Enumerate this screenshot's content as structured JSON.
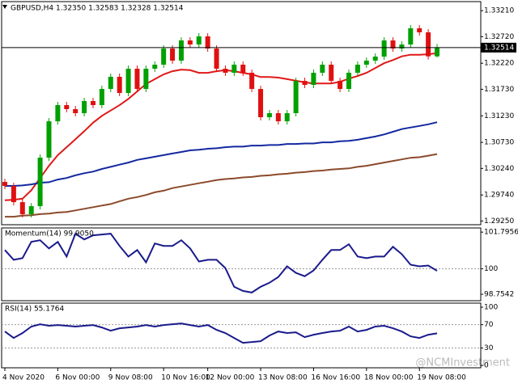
{
  "chart_data": [
    {
      "type": "candlestick",
      "title": "GBPUSD,H4  1.32350 1.32583 1.32328 1.32514",
      "watermark": "@NCMInvestment",
      "up_color": "#00a000",
      "down_color": "#e01010",
      "categories": [
        "4 Nov 2020",
        null,
        null,
        null,
        null,
        null,
        "6 Nov 00:00",
        null,
        null,
        null,
        null,
        null,
        "9 Nov 08:00",
        null,
        null,
        null,
        null,
        null,
        "10 Nov 16:00",
        null,
        null,
        null,
        null,
        "12 Nov 00:00",
        null,
        null,
        null,
        null,
        null,
        "13 Nov 08:00",
        null,
        null,
        null,
        null,
        null,
        "16 Nov 16:00",
        null,
        null,
        null,
        null,
        null,
        "18 Nov 00:00",
        null,
        null,
        null,
        null,
        null,
        "19 Nov 08:00",
        null,
        null
      ],
      "open": [
        1.29986,
        1.2991,
        1.29605,
        1.29377,
        1.29529,
        1.30443,
        1.31127,
        1.31432,
        1.31356,
        1.3128,
        1.31508,
        1.31432,
        1.31736,
        1.31965,
        1.3166,
        1.32117,
        1.31736,
        1.32117,
        1.32193,
        1.32497,
        1.32269,
        1.32649,
        1.32573,
        1.32726,
        1.32497,
        1.32117,
        1.32041,
        1.32193,
        1.32041,
        1.31736,
        1.31204,
        1.3128,
        1.31127,
        1.3128,
        1.31888,
        1.31812,
        1.32041,
        1.32193,
        1.31888,
        1.31736,
        1.32041,
        1.32193,
        1.32269,
        1.32345,
        1.32649,
        1.32497,
        1.32573,
        1.32878,
        1.32802,
        1.3235
      ],
      "high": [
        1.30046,
        1.2997,
        1.29665,
        1.29589,
        1.30503,
        1.31187,
        1.31492,
        1.31492,
        1.31416,
        1.31568,
        1.31568,
        1.31796,
        1.32025,
        1.32025,
        1.32177,
        1.32177,
        1.32177,
        1.32253,
        1.32557,
        1.32557,
        1.32709,
        1.32709,
        1.32786,
        1.32786,
        1.32557,
        1.32177,
        1.32253,
        1.32253,
        1.32101,
        1.31796,
        1.3134,
        1.3134,
        1.3134,
        1.31948,
        1.31948,
        1.32101,
        1.32253,
        1.32253,
        1.31948,
        1.32101,
        1.32253,
        1.32329,
        1.32405,
        1.32709,
        1.32709,
        1.32633,
        1.32938,
        1.32938,
        1.32862,
        1.32583
      ],
      "low": [
        1.2985,
        1.29545,
        1.29317,
        1.29317,
        1.29469,
        1.30383,
        1.31067,
        1.31296,
        1.3122,
        1.3122,
        1.31372,
        1.31372,
        1.31676,
        1.316,
        1.316,
        1.31676,
        1.31676,
        1.32057,
        1.32133,
        1.32209,
        1.32209,
        1.32513,
        1.32513,
        1.32437,
        1.32057,
        1.31981,
        1.31981,
        1.31981,
        1.31676,
        1.31144,
        1.31144,
        1.31067,
        1.31067,
        1.3122,
        1.31752,
        1.31752,
        1.31981,
        1.31828,
        1.31676,
        1.31676,
        1.31981,
        1.32133,
        1.32209,
        1.32285,
        1.32437,
        1.32437,
        1.32513,
        1.32742,
        1.3229,
        1.32328
      ],
      "close": [
        1.2991,
        1.29605,
        1.29377,
        1.29529,
        1.30443,
        1.31127,
        1.31432,
        1.31356,
        1.3128,
        1.31508,
        1.31432,
        1.31736,
        1.31965,
        1.3166,
        1.32117,
        1.31736,
        1.32117,
        1.32193,
        1.32497,
        1.32269,
        1.32649,
        1.32573,
        1.32726,
        1.32497,
        1.32117,
        1.32041,
        1.32193,
        1.32041,
        1.31736,
        1.31204,
        1.3128,
        1.31127,
        1.3128,
        1.31888,
        1.31812,
        1.32041,
        1.32193,
        1.31888,
        1.31736,
        1.32041,
        1.32193,
        1.32269,
        1.32345,
        1.32649,
        1.32497,
        1.32573,
        1.32878,
        1.32802,
        1.3235,
        1.32514
      ],
      "series": [
        {
          "color": "#e01818",
          "values": [
            1.2964,
            1.2965,
            1.2967,
            1.2983,
            1.3006,
            1.3029,
            1.3049,
            1.3064,
            1.3079,
            1.3094,
            1.311,
            1.3123,
            1.3133,
            1.3143,
            1.3155,
            1.3169,
            1.3183,
            1.3192,
            1.3201,
            1.3207,
            1.321,
            1.3209,
            1.3204,
            1.3204,
            1.3207,
            1.3209,
            1.3207,
            1.3204,
            1.3201,
            1.3196,
            1.3196,
            1.3195,
            1.3192,
            1.3189,
            1.3186,
            1.3184,
            1.3184,
            1.3184,
            1.3187,
            1.3193,
            1.3198,
            1.3204,
            1.3213,
            1.3222,
            1.3228,
            1.3235,
            1.3238,
            1.3238,
            1.3239,
            1.3241
          ]
        },
        {
          "color": "#1428a0",
          "values": [
            1.2991,
            1.2991,
            1.2992,
            1.2994,
            1.2997,
            1.2998,
            1.3003,
            1.3006,
            1.3011,
            1.3015,
            1.3018,
            1.3023,
            1.3027,
            1.3031,
            1.3035,
            1.304,
            1.3043,
            1.3046,
            1.3049,
            1.3052,
            1.3055,
            1.3058,
            1.3059,
            1.3061,
            1.3062,
            1.3064,
            1.3065,
            1.3065,
            1.3067,
            1.3067,
            1.3068,
            1.3068,
            1.307,
            1.307,
            1.3071,
            1.3071,
            1.3073,
            1.3073,
            1.3075,
            1.3076,
            1.3078,
            1.3081,
            1.3084,
            1.3088,
            1.3093,
            1.3098,
            1.3101,
            1.3104,
            1.3107,
            1.3111
          ]
        },
        {
          "color": "#8b4a2b",
          "values": [
            1.2933,
            1.2933,
            1.2935,
            1.2936,
            1.2938,
            1.2939,
            1.2941,
            1.2942,
            1.2945,
            1.2948,
            1.2951,
            1.2954,
            1.2957,
            1.2962,
            1.2967,
            1.297,
            1.2974,
            1.2979,
            1.2982,
            1.2987,
            1.299,
            1.2993,
            1.2996,
            1.2999,
            1.3002,
            1.3004,
            1.3005,
            1.3007,
            1.3008,
            1.301,
            1.3011,
            1.3013,
            1.3014,
            1.3016,
            1.3017,
            1.3019,
            1.302,
            1.3022,
            1.3023,
            1.3024,
            1.3027,
            1.3029,
            1.3032,
            1.3035,
            1.3038,
            1.3041,
            1.3044,
            1.3045,
            1.3048,
            1.3051
          ]
        }
      ],
      "ylim": [
        1.2918,
        1.3338
      ],
      "yticks": [
        {
          "value": 1.3321,
          "label": "1.33210"
        },
        {
          "value": 1.3272,
          "label": "1.32720"
        },
        {
          "value": 1.3222,
          "label": "1.32220"
        },
        {
          "value": 1.3173,
          "label": "1.31730"
        },
        {
          "value": 1.3123,
          "label": "1.31230"
        },
        {
          "value": 1.3073,
          "label": "1.30730"
        },
        {
          "value": 1.3024,
          "label": "1.30240"
        },
        {
          "value": 1.2974,
          "label": "1.29740"
        },
        {
          "value": 1.2925,
          "label": "1.29250"
        }
      ]
    },
    {
      "type": "line",
      "title": "Momentum(14) 99.9050",
      "color": "#1a1a8c",
      "values": [
        100.92,
        100.44,
        100.52,
        101.32,
        101.4,
        101.0,
        101.32,
        100.6,
        101.72,
        101.44,
        101.64,
        101.68,
        101.72,
        101.12,
        100.6,
        100.92,
        100.32,
        101.24,
        101.12,
        101.12,
        101.4,
        101.0,
        100.36,
        100.44,
        100.44,
        100.04,
        99.12,
        98.92,
        98.84,
        99.12,
        99.32,
        99.6,
        100.12,
        99.8,
        99.64,
        99.92,
        100.44,
        100.92,
        100.92,
        101.2,
        100.6,
        100.52,
        100.6,
        100.6,
        101.08,
        100.72,
        100.2,
        100.12,
        100.16,
        99.905
      ],
      "ylim": [
        98.44,
        102.0
      ],
      "yticks": [
        101.7956,
        100,
        98.7542
      ],
      "levels": [
        100
      ]
    },
    {
      "type": "line",
      "title": "RSI(14) 55.1764",
      "color": "#1a1a8c",
      "values": [
        58.3,
        47.2,
        55.6,
        66.7,
        70.8,
        68.1,
        69.4,
        68.1,
        66.7,
        68.1,
        69.4,
        65.3,
        59.7,
        63.9,
        65.3,
        66.7,
        69.4,
        66.7,
        69.4,
        70.8,
        72.2,
        69.4,
        66.7,
        69.4,
        61.1,
        55.6,
        47.2,
        38.9,
        40.3,
        41.7,
        51.4,
        58.3,
        55.6,
        56.9,
        48.6,
        52.8,
        55.6,
        58.3,
        59.7,
        66.7,
        58.3,
        61.1,
        66.7,
        68.1,
        63.9,
        58.3,
        50.0,
        47.2,
        52.8,
        55.1764
      ],
      "ylim": [
        -4,
        107
      ],
      "yticks": [
        100,
        70,
        30,
        0
      ],
      "levels": [
        70,
        30
      ]
    }
  ]
}
